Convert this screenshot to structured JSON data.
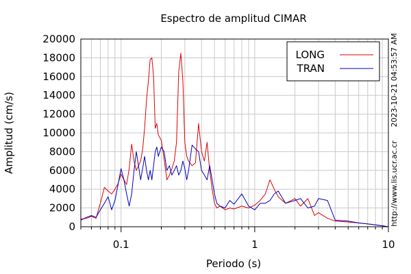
{
  "chart_data": {
    "type": "line",
    "title": "Espectro de amplitud CIMAR",
    "xlabel": "Periodo (s)",
    "ylabel": "Amplitud (cm/s)",
    "xscale": "log",
    "xlim": [
      0.05,
      10
    ],
    "ylim": [
      0,
      20000
    ],
    "grid": true,
    "legend_position": "top-right",
    "x_ticks": [
      {
        "value": 0.1,
        "label": "0.1"
      },
      {
        "value": 1,
        "label": "1"
      },
      {
        "value": 10,
        "label": "10"
      }
    ],
    "y_ticks": [
      {
        "value": 0,
        "label": "0"
      },
      {
        "value": 2000,
        "label": "2000"
      },
      {
        "value": 4000,
        "label": "4000"
      },
      {
        "value": 6000,
        "label": "6000"
      },
      {
        "value": 8000,
        "label": "8000"
      },
      {
        "value": 10000,
        "label": "10000"
      },
      {
        "value": 12000,
        "label": "12000"
      },
      {
        "value": 14000,
        "label": "14000"
      },
      {
        "value": 16000,
        "label": "16000"
      },
      {
        "value": 18000,
        "label": "18000"
      },
      {
        "value": 20000,
        "label": "20000"
      }
    ],
    "side_labels": {
      "timestamp": "2023-10-21 04:53:57 AM",
      "url": "http://www.lis.ucr.ac.cr"
    },
    "series": [
      {
        "name": "LONG",
        "color": "#dd0000",
        "x": [
          0.05,
          0.055,
          0.06,
          0.065,
          0.07,
          0.075,
          0.08,
          0.085,
          0.09,
          0.095,
          0.1,
          0.105,
          0.11,
          0.115,
          0.12,
          0.125,
          0.13,
          0.135,
          0.14,
          0.145,
          0.15,
          0.155,
          0.16,
          0.165,
          0.17,
          0.175,
          0.18,
          0.185,
          0.19,
          0.2,
          0.21,
          0.22,
          0.23,
          0.24,
          0.25,
          0.26,
          0.27,
          0.28,
          0.29,
          0.3,
          0.31,
          0.32,
          0.34,
          0.36,
          0.38,
          0.4,
          0.42,
          0.44,
          0.46,
          0.48,
          0.5,
          0.52,
          0.55,
          0.6,
          0.65,
          0.7,
          0.8,
          0.9,
          1.0,
          1.1,
          1.2,
          1.3,
          1.4,
          1.5,
          1.7,
          2.0,
          2.2,
          2.5,
          2.8,
          3.0,
          3.5,
          4.0,
          5.0,
          6.0,
          7.0,
          8.0,
          9.0,
          10.0
        ],
        "y": [
          800,
          900,
          1100,
          900,
          2500,
          4200,
          3800,
          3500,
          4000,
          4600,
          5600,
          5000,
          4500,
          6200,
          8800,
          7000,
          6000,
          6500,
          7000,
          8200,
          10500,
          13500,
          15500,
          17800,
          18000,
          16000,
          10500,
          11000,
          9800,
          9200,
          7200,
          5000,
          5500,
          6200,
          7000,
          9000,
          16500,
          18500,
          15500,
          9000,
          7500,
          7000,
          6500,
          6800,
          11000,
          8000,
          7000,
          9000,
          6000,
          4000,
          2500,
          2000,
          2200,
          1800,
          2000,
          1900,
          2200,
          2000,
          2300,
          2800,
          3500,
          5000,
          4000,
          3200,
          2500,
          3000,
          2200,
          3000,
          1200,
          1500,
          900,
          600,
          500,
          400,
          300,
          200,
          100,
          0
        ]
      },
      {
        "name": "TRAN",
        "color": "#0000bb",
        "x": [
          0.05,
          0.055,
          0.06,
          0.065,
          0.07,
          0.075,
          0.08,
          0.085,
          0.09,
          0.095,
          0.1,
          0.105,
          0.11,
          0.115,
          0.12,
          0.125,
          0.13,
          0.135,
          0.14,
          0.145,
          0.15,
          0.155,
          0.16,
          0.165,
          0.17,
          0.175,
          0.18,
          0.185,
          0.19,
          0.2,
          0.21,
          0.22,
          0.23,
          0.24,
          0.25,
          0.26,
          0.27,
          0.28,
          0.29,
          0.3,
          0.31,
          0.32,
          0.34,
          0.36,
          0.38,
          0.4,
          0.42,
          0.44,
          0.46,
          0.48,
          0.5,
          0.52,
          0.55,
          0.6,
          0.65,
          0.7,
          0.8,
          0.9,
          1.0,
          1.1,
          1.2,
          1.3,
          1.4,
          1.5,
          1.7,
          2.0,
          2.2,
          2.5,
          2.8,
          3.0,
          3.5,
          4.0,
          5.0,
          6.0,
          7.0,
          8.0,
          9.0,
          10.0
        ],
        "y": [
          700,
          1000,
          1200,
          1000,
          1800,
          2500,
          3200,
          1800,
          2800,
          4500,
          6200,
          5000,
          3500,
          2200,
          3500,
          6000,
          8000,
          6500,
          5000,
          6200,
          7500,
          6000,
          5000,
          6000,
          5000,
          6500,
          8000,
          8500,
          7500,
          8500,
          8000,
          6000,
          6500,
          5500,
          6000,
          6500,
          5500,
          6000,
          7000,
          6200,
          5000,
          6000,
          8700,
          8300,
          8000,
          6000,
          5500,
          5000,
          6500,
          5000,
          3500,
          2500,
          2200,
          2000,
          2800,
          2400,
          3500,
          2200,
          1800,
          2500,
          2500,
          2800,
          3500,
          3800,
          2500,
          2800,
          3000,
          2000,
          2200,
          3000,
          2800,
          700,
          600,
          400,
          300,
          200,
          100,
          0
        ]
      }
    ]
  }
}
